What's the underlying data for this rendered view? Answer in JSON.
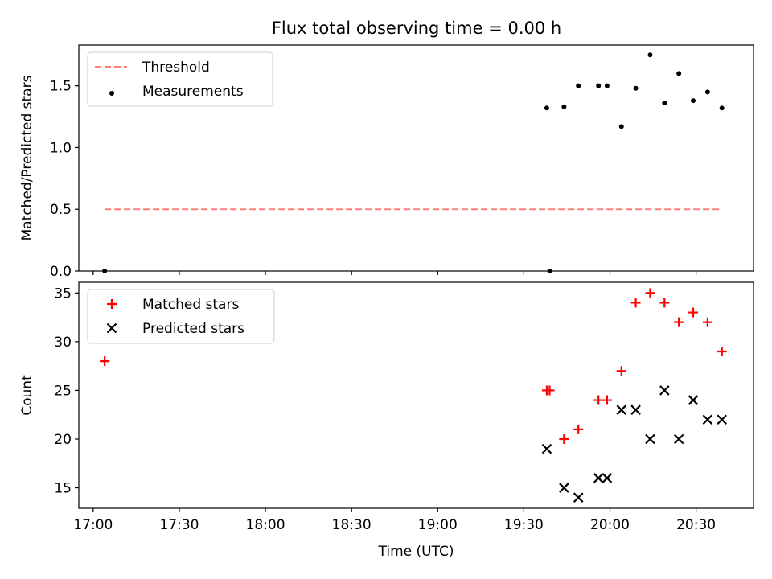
{
  "title": "Flux total observing time = 0.00 h",
  "colors": {
    "threshold": "#ff7f7f",
    "measurements": "#000000",
    "matched": "#ff0000",
    "predicted": "#000000"
  },
  "chart_data": [
    {
      "type": "scatter",
      "ylabel": "Matched/Predicted stars",
      "xlabel": "",
      "xlim": [
        "16:55",
        "20:50"
      ],
      "ylim": [
        0,
        1.83
      ],
      "yticks": [
        "0.0",
        "0.5",
        "1.0",
        "1.5"
      ],
      "grid": false,
      "legend": {
        "placement": "top-left",
        "entries": [
          "Threshold",
          "Measurements"
        ]
      },
      "series": [
        {
          "name": "Threshold",
          "style": "dashed-line",
          "x": [
            "17:04",
            "20:39"
          ],
          "y": [
            0.5,
            0.5
          ]
        },
        {
          "name": "Measurements",
          "style": "dot",
          "x": [
            "17:04",
            "19:38",
            "19:39",
            "19:44",
            "19:49",
            "19:56",
            "19:59",
            "20:04",
            "20:09",
            "20:14",
            "20:19",
            "20:24",
            "20:29",
            "20:34",
            "20:39"
          ],
          "y": [
            0.0,
            1.32,
            0.0,
            1.33,
            1.5,
            1.5,
            1.5,
            1.17,
            1.48,
            1.75,
            1.36,
            1.6,
            1.38,
            1.45,
            1.32
          ]
        }
      ]
    },
    {
      "type": "scatter",
      "ylabel": "Count",
      "xlabel": "Time (UTC)",
      "xlim": [
        "16:55",
        "20:50"
      ],
      "ylim": [
        12.9,
        36.1
      ],
      "yticks": [
        "15",
        "20",
        "25",
        "30",
        "35"
      ],
      "xticks": [
        "17:00",
        "17:30",
        "18:00",
        "18:30",
        "19:00",
        "19:30",
        "20:00",
        "20:30"
      ],
      "grid": false,
      "legend": {
        "placement": "top-left",
        "entries": [
          "Matched stars",
          "Predicted stars"
        ]
      },
      "series": [
        {
          "name": "Matched stars",
          "marker": "plus",
          "x": [
            "17:04",
            "19:38",
            "19:39",
            "19:44",
            "19:49",
            "19:56",
            "19:59",
            "20:04",
            "20:09",
            "20:14",
            "20:19",
            "20:24",
            "20:29",
            "20:34",
            "20:39"
          ],
          "y": [
            28,
            25,
            25,
            20,
            21,
            24,
            24,
            27,
            34,
            35,
            34,
            32,
            33,
            32,
            29
          ]
        },
        {
          "name": "Predicted stars",
          "marker": "x",
          "x": [
            "19:38",
            "19:44",
            "19:49",
            "19:56",
            "19:59",
            "20:04",
            "20:09",
            "20:14",
            "20:19",
            "20:24",
            "20:29",
            "20:34",
            "20:39"
          ],
          "y": [
            19,
            15,
            14,
            16,
            16,
            23,
            23,
            20,
            25,
            20,
            24,
            22,
            22
          ]
        }
      ]
    }
  ]
}
